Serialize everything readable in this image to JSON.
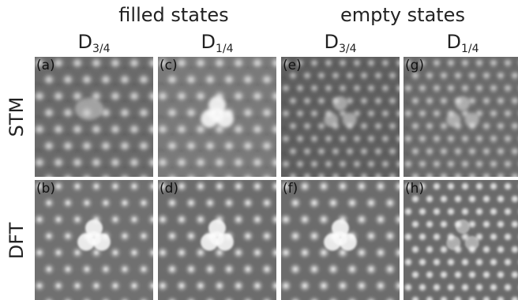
{
  "header": {
    "group_filled": "filled states",
    "group_empty": "empty states"
  },
  "columns": [
    {
      "label_main": "D",
      "label_sub": "3/4"
    },
    {
      "label_main": "D",
      "label_sub": "1/4"
    },
    {
      "label_main": "D",
      "label_sub": "3/4"
    },
    {
      "label_main": "D",
      "label_sub": "1/4"
    }
  ],
  "rows": [
    {
      "label": "STM"
    },
    {
      "label": "DFT"
    }
  ],
  "panels": [
    {
      "label": "(a)",
      "kind": "stm",
      "defect": "blob",
      "bg": "#6a6a6a",
      "dot": "#a8a8a8"
    },
    {
      "label": "(c)",
      "kind": "stm",
      "defect": "tri-bright",
      "bg": "#7a7a7a",
      "dot": "#b0b0b0"
    },
    {
      "label": "(e)",
      "kind": "stm-fine",
      "defect": "tri-faint",
      "bg": "#5e5e5e",
      "dot": "#a0a0a0"
    },
    {
      "label": "(g)",
      "kind": "stm-fine",
      "defect": "tri-faint",
      "bg": "#6a6a6a",
      "dot": "#b4b4b4"
    },
    {
      "label": "(b)",
      "kind": "dft",
      "defect": "tri-bright",
      "bg": "#707070",
      "dot": "#9a9a9a"
    },
    {
      "label": "(d)",
      "kind": "dft",
      "defect": "tri-bright",
      "bg": "#6c6c6c",
      "dot": "#a0a0a0"
    },
    {
      "label": "(f)",
      "kind": "dft",
      "defect": "tri-bright",
      "bg": "#6c6c6c",
      "dot": "#a4a4a4"
    },
    {
      "label": "(h)",
      "kind": "dft-fine",
      "defect": "tri-faint",
      "bg": "#6a6a6a",
      "dot": "#c8c8c8"
    }
  ]
}
